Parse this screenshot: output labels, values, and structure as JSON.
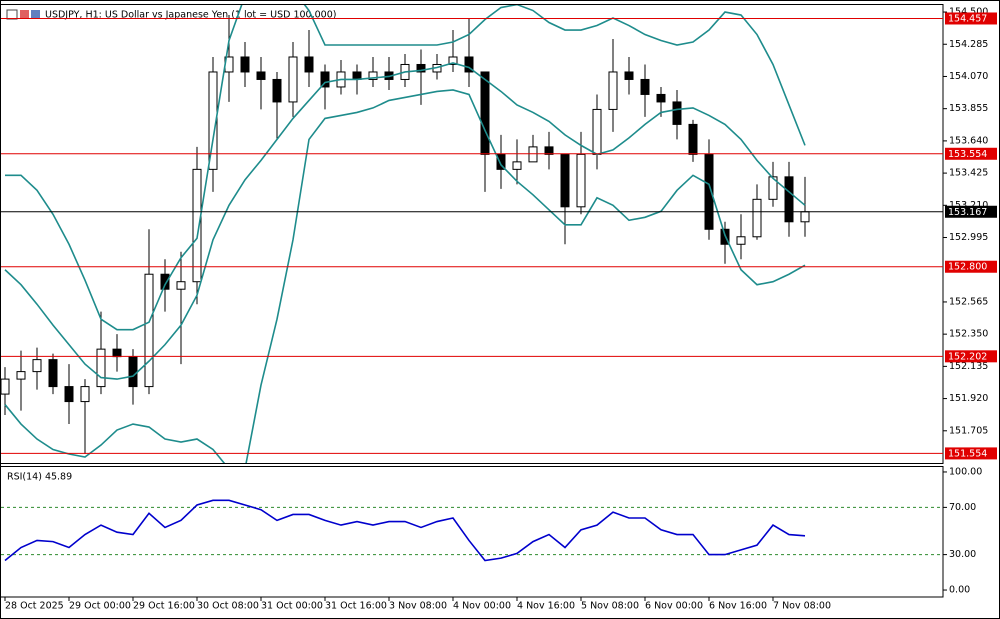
{
  "chart_data": [
    {
      "type": "candlestick",
      "title": "USDJPY, H1: US Dollar vs Japanese Yen (1 lot = USD 100,000)",
      "categories": [
        "28 Oct 2025",
        null,
        null,
        null,
        "29 Oct 00:00",
        null,
        null,
        null,
        "29 Oct 16:00",
        null,
        null,
        null,
        "30 Oct 08:00",
        null,
        null,
        null,
        "31 Oct 00:00",
        null,
        null,
        null,
        "31 Oct 16:00",
        null,
        null,
        null,
        "3 Nov 08:00",
        null,
        null,
        null,
        "4 Nov 00:00",
        null,
        null,
        null,
        "4 Nov 16:00",
        null,
        null,
        null,
        "5 Nov 08:00",
        null,
        null,
        null,
        "6 Nov 00:00",
        null,
        null,
        null,
        "6 Nov 16:00",
        null,
        null,
        null,
        "7 Nov 08:00",
        null,
        null
      ],
      "open": [
        151.95,
        152.05,
        152.1,
        152.18,
        152.0,
        151.9,
        152.0,
        152.25,
        152.2,
        152.0,
        152.75,
        152.65,
        152.7,
        153.45,
        154.1,
        154.2,
        154.1,
        154.05,
        153.9,
        154.2,
        154.1,
        154.0,
        154.1,
        154.05,
        154.1,
        154.05,
        154.15,
        154.1,
        154.15,
        154.2,
        154.1,
        153.55,
        153.45,
        153.5,
        153.6,
        153.55,
        153.2,
        153.55,
        153.85,
        154.1,
        154.05,
        153.95,
        153.9,
        153.75,
        153.55,
        153.05,
        152.95,
        153.0,
        153.25,
        153.4,
        153.1
      ],
      "high": [
        152.13,
        152.24,
        152.26,
        152.22,
        152.15,
        152.05,
        152.5,
        152.35,
        152.25,
        153.05,
        152.85,
        152.9,
        153.6,
        154.2,
        154.48,
        154.3,
        154.2,
        154.1,
        154.3,
        154.38,
        154.15,
        154.18,
        154.15,
        154.2,
        154.2,
        154.22,
        154.25,
        154.22,
        154.38,
        154.46,
        154.1,
        153.68,
        153.65,
        153.68,
        153.7,
        153.55,
        153.7,
        153.95,
        154.32,
        154.2,
        154.15,
        154.0,
        153.98,
        153.78,
        153.65,
        153.1,
        153.15,
        153.35,
        153.5,
        153.5,
        153.4
      ],
      "low": [
        151.81,
        151.84,
        151.98,
        151.95,
        151.75,
        151.55,
        151.95,
        152.1,
        151.88,
        151.95,
        152.5,
        152.15,
        152.55,
        153.3,
        153.9,
        154.0,
        153.85,
        153.65,
        153.8,
        154.0,
        153.85,
        153.95,
        153.95,
        154.0,
        153.98,
        154.0,
        153.88,
        154.05,
        154.1,
        154.0,
        153.3,
        153.32,
        153.35,
        153.5,
        153.45,
        152.95,
        153.15,
        153.45,
        153.7,
        153.95,
        153.8,
        153.8,
        153.65,
        153.5,
        152.98,
        152.82,
        152.85,
        152.98,
        153.2,
        153.0,
        153.0
      ],
      "close": [
        152.05,
        152.1,
        152.18,
        152.0,
        151.9,
        152.0,
        152.25,
        152.2,
        152.0,
        152.75,
        152.65,
        152.7,
        153.45,
        154.1,
        154.2,
        154.1,
        154.05,
        153.9,
        154.2,
        154.1,
        154.0,
        154.1,
        154.05,
        154.1,
        154.05,
        154.15,
        154.1,
        154.15,
        154.2,
        154.1,
        153.55,
        153.45,
        153.5,
        153.6,
        153.55,
        153.2,
        153.55,
        153.85,
        154.1,
        154.05,
        153.95,
        153.9,
        153.75,
        153.55,
        153.05,
        152.95,
        153.0,
        153.25,
        153.4,
        153.1,
        153.167
      ],
      "up_color": "#ffffff",
      "down_color": "#000000",
      "wick_color": "#000000",
      "bands": [
        {
          "color": "#1e8c8c",
          "values": [
            153.41,
            153.41,
            153.31,
            153.15,
            152.95,
            152.71,
            152.45,
            152.38,
            152.38,
            152.43,
            152.68,
            152.86,
            152.99,
            153.65,
            154.31,
            154.61,
            154.7,
            154.7,
            154.65,
            154.51,
            154.28,
            154.28,
            154.28,
            154.28,
            154.28,
            154.28,
            154.28,
            154.28,
            154.3,
            154.35,
            154.45,
            154.53,
            154.55,
            154.51,
            154.43,
            154.38,
            154.38,
            154.41,
            154.46,
            154.41,
            154.35,
            154.31,
            154.28,
            154.3,
            154.38,
            154.5,
            154.48,
            154.35,
            154.15,
            153.88,
            153.61
          ]
        },
        {
          "color": "#1e8c8c",
          "values": [
            152.78,
            152.68,
            152.55,
            152.41,
            152.28,
            152.15,
            152.06,
            152.05,
            152.07,
            152.17,
            152.28,
            152.41,
            152.61,
            152.98,
            153.21,
            153.38,
            153.51,
            153.65,
            153.79,
            153.91,
            154.03,
            154.05,
            154.05,
            154.06,
            154.07,
            154.1,
            154.11,
            154.13,
            154.16,
            154.13,
            154.05,
            153.97,
            153.88,
            153.83,
            153.77,
            153.68,
            153.61,
            153.55,
            153.58,
            153.66,
            153.75,
            153.83,
            153.85,
            153.86,
            153.81,
            153.75,
            153.65,
            153.51,
            153.39,
            153.3,
            153.21
          ]
        },
        {
          "color": "#1e8c8c",
          "values": [
            151.88,
            151.75,
            151.65,
            151.58,
            151.55,
            151.53,
            151.61,
            151.71,
            151.75,
            151.73,
            151.65,
            151.63,
            151.65,
            151.58,
            151.45,
            151.45,
            152.01,
            152.45,
            152.98,
            153.65,
            153.79,
            153.81,
            153.83,
            153.86,
            153.91,
            153.93,
            153.95,
            153.97,
            153.98,
            153.95,
            153.71,
            153.48,
            153.37,
            153.28,
            153.18,
            153.08,
            153.08,
            153.26,
            153.21,
            153.11,
            153.13,
            153.17,
            153.31,
            153.41,
            153.35,
            153.01,
            152.78,
            152.68,
            152.7,
            152.75,
            152.81
          ]
        }
      ],
      "hlines": [
        {
          "value": 154.457,
          "color": "#e00000"
        },
        {
          "value": 153.554,
          "color": "#e00000"
        },
        {
          "value": 153.167,
          "color": "#000000"
        },
        {
          "value": 152.8,
          "label": "152.800",
          "color": "#e00000"
        },
        {
          "value": 152.202,
          "color": "#e00000"
        },
        {
          "value": 151.554,
          "color": "#e00000"
        }
      ],
      "ylim": [
        151.49,
        154.547
      ],
      "yticks": [
        {
          "value": 154.5,
          "label": "154.500"
        },
        154.285,
        {
          "value": 154.07,
          "label": "154.070"
        },
        153.855,
        {
          "value": 153.64,
          "label": "153.640"
        },
        153.425,
        {
          "value": 153.21,
          "label": "153.210"
        },
        152.995,
        152.565,
        {
          "value": 152.35,
          "label": "152.350"
        },
        152.135,
        {
          "value": 151.92,
          "label": "151.920"
        },
        151.705
      ]
    },
    {
      "type": "line",
      "title": "RSI(14) 45.89",
      "values": [
        25,
        36,
        42,
        41,
        36,
        47,
        55,
        49,
        47,
        65,
        53,
        59,
        72,
        76,
        76,
        72,
        68,
        59,
        64,
        64,
        59,
        55,
        58,
        55,
        58,
        58,
        53,
        58,
        61,
        42,
        25,
        27,
        31,
        41,
        47,
        36,
        51,
        55,
        66,
        61,
        61,
        51,
        47,
        47,
        30,
        30,
        34,
        38,
        55,
        47,
        45.89
      ],
      "color": "#0000cc",
      "ylim": [
        -5.9,
        104.2
      ],
      "yticks": [
        {
          "value": 100,
          "label": "100.00"
        },
        {
          "value": 70,
          "label": "70.00"
        },
        {
          "value": 30,
          "label": "30.00"
        },
        {
          "value": 0,
          "label": "0.00"
        }
      ],
      "levels": [
        70,
        30
      ],
      "level_color": "#2e8b2e"
    }
  ]
}
